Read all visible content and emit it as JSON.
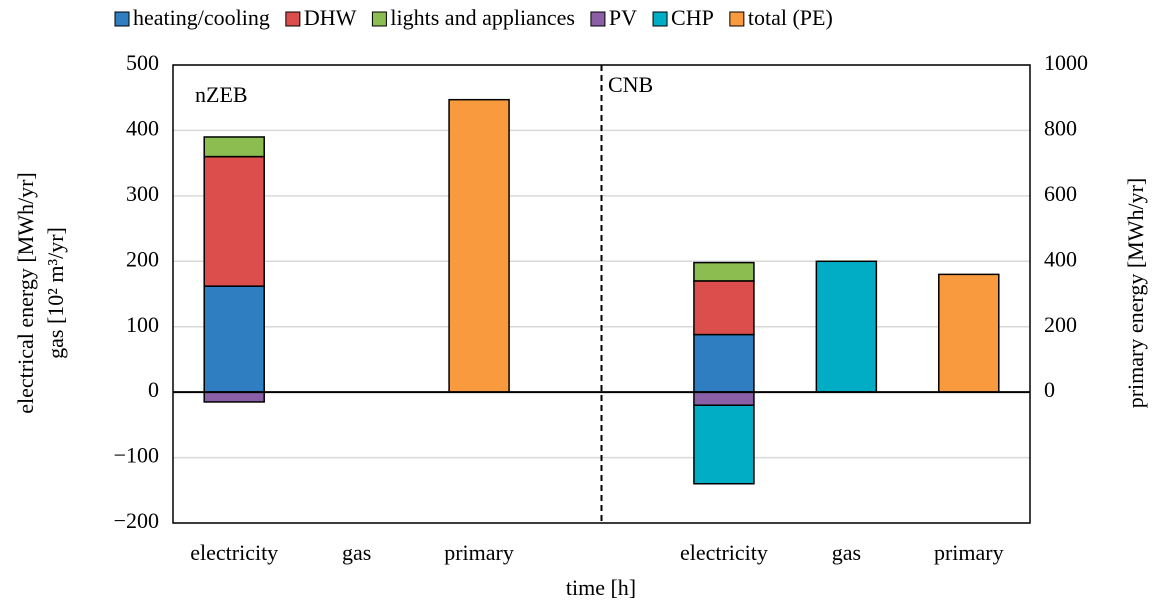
{
  "chart_data": {
    "type": "bar",
    "stacked": true,
    "categories": [
      "electricity",
      "gas",
      "primary",
      null,
      "electricity",
      "gas",
      "primary"
    ],
    "series": [
      {
        "name": "heating/cooling",
        "color": "#2e7ec1",
        "values": [
          162,
          null,
          null,
          null,
          88,
          null,
          null
        ]
      },
      {
        "name": "DHW",
        "color": "#dc4e4c",
        "values": [
          198,
          null,
          null,
          null,
          82,
          null,
          null
        ]
      },
      {
        "name": "lights and appliances",
        "color": "#8bbd50",
        "values": [
          30,
          null,
          null,
          null,
          28,
          null,
          null
        ]
      },
      {
        "name": "PV",
        "color": "#8a5fa6",
        "values": [
          -15,
          null,
          null,
          null,
          -20,
          null,
          null
        ]
      },
      {
        "name": "CHP",
        "color": "#00adc5",
        "values": [
          null,
          null,
          null,
          null,
          -120,
          200,
          null
        ]
      },
      {
        "name": "total (PE)",
        "color": "#fa9a3e",
        "axis": "y2",
        "values": [
          null,
          null,
          894,
          null,
          null,
          null,
          360
        ]
      }
    ],
    "annotations": [
      "nZEB",
      "CNB"
    ],
    "xlabel": "time [h]",
    "ylabel": [
      "electrical energy [MWh/yr]",
      "gas [10² m³/yr]"
    ],
    "y2label": "primary energy [MWh/yr]",
    "ylim": [
      -200,
      500
    ],
    "yticks": [
      {
        "value": -200,
        "label": "−200"
      },
      {
        "value": -100,
        "label": "−100"
      },
      0,
      100,
      200,
      300,
      400,
      500
    ],
    "y2lim": [
      -400,
      1000
    ],
    "y2ticks": [
      0,
      200,
      400,
      600,
      800,
      1000
    ],
    "grid": true,
    "legend": "top"
  }
}
